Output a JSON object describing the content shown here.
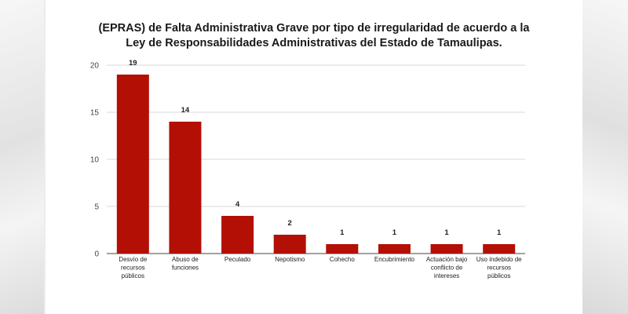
{
  "chart_data": {
    "type": "bar",
    "title_lines": [
      "(EPRAS) de Falta Administrativa Grave por tipo de irregularidad de acuerdo a la",
      "Ley de Responsabilidades Administrativas del Estado de Tamaulipas."
    ],
    "categories": [
      [
        "Desvío de",
        "recursos",
        "públicos"
      ],
      [
        "Abuso de",
        "funciones"
      ],
      [
        "Peculado"
      ],
      [
        "Nepotismo"
      ],
      [
        "Cohecho"
      ],
      [
        "Encubrimiento"
      ],
      [
        "Actuación bajo",
        "conflicto de",
        "intereses"
      ],
      [
        "Uso indebido de",
        "recursos",
        "públicos"
      ]
    ],
    "values": [
      19,
      14,
      4,
      2,
      1,
      1,
      1,
      1
    ],
    "data_labels": [
      "19",
      "14",
      "4",
      "2",
      "1",
      "1",
      "1",
      "1"
    ],
    "yticks": [
      0,
      5,
      10,
      15,
      20
    ],
    "ylim": [
      0,
      20
    ],
    "grid": true,
    "legend": "none",
    "bar_color": "#b30f05",
    "xlabel": "",
    "ylabel": ""
  }
}
